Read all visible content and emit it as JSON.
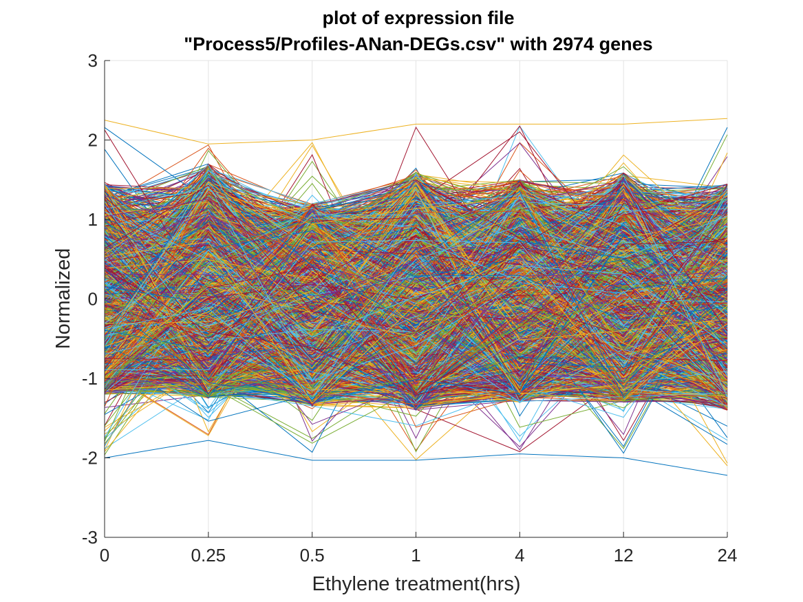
{
  "chart_data": {
    "type": "line",
    "title": [
      "plot of expression file",
      "\"Process5/Profiles-ANan-DEGs.csv\" with 2974 genes"
    ],
    "xlabel": "Ethylene treatment(hrs)",
    "ylabel": "Normalized",
    "categories": [
      "0",
      "0.25",
      "0.5",
      "1",
      "4",
      "12",
      "24"
    ],
    "y_ticks": [
      "3",
      "2",
      "1",
      "0",
      "-1",
      "-2",
      "-3"
    ],
    "ylim": [
      -3,
      3
    ],
    "grid": true,
    "n_series": 2974,
    "colors": [
      "#0072BD",
      "#D95319",
      "#EDB120",
      "#7E2F8E",
      "#77AC30",
      "#4DBEEE",
      "#A2142F"
    ],
    "value_envelope": {
      "upper": [
        2.25,
        1.95,
        2.0,
        2.2,
        2.2,
        2.2,
        2.27
      ],
      "lower": [
        -2.0,
        -1.78,
        -2.03,
        -2.03,
        -1.95,
        -2.0,
        -2.22
      ]
    },
    "typical_band": {
      "upper": [
        1.45,
        1.7,
        1.2,
        1.6,
        1.5,
        1.6,
        1.45
      ],
      "lower": [
        -1.2,
        -1.25,
        -1.35,
        -1.4,
        -1.3,
        -1.3,
        -1.4
      ]
    }
  }
}
